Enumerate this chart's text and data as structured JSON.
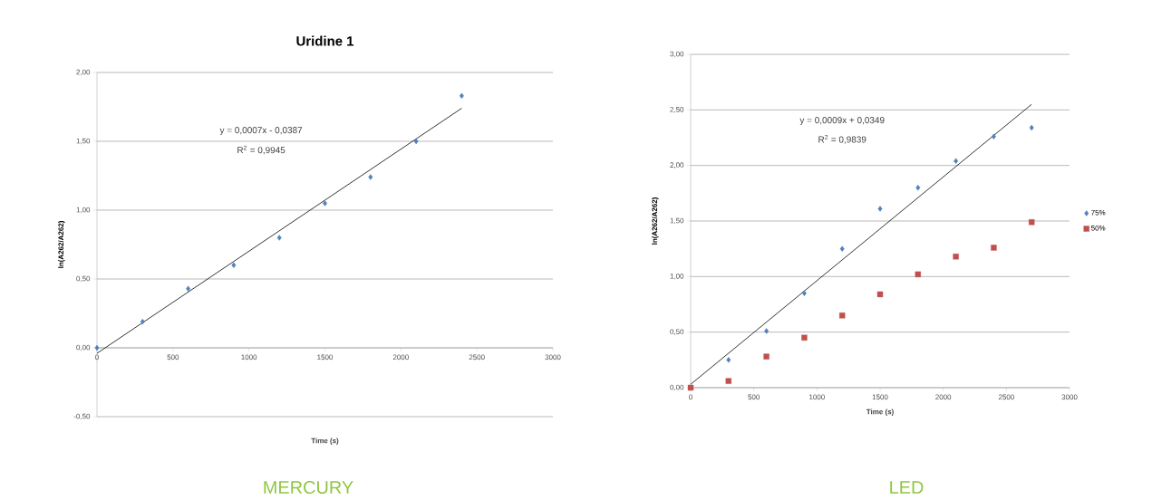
{
  "chart_data": [
    {
      "type": "scatter",
      "title": "Uridine 1",
      "subtitle": "MERCURY",
      "xlabel": "Time (s)",
      "ylabel": "ln(A262/A262)",
      "xlim": [
        0,
        3000
      ],
      "xticks": [
        0,
        500,
        1000,
        1500,
        2000,
        2500,
        3000
      ],
      "ylim": [
        -0.5,
        2.0
      ],
      "yticks": [
        {
          "value": -0.5,
          "label": "-0,50"
        },
        {
          "value": 0,
          "label": "0,00"
        },
        {
          "value": 0.5,
          "label": "0,50"
        },
        {
          "value": 1.0,
          "label": "1,00"
        },
        {
          "value": 1.5,
          "label": "1,50"
        },
        {
          "value": 2.0,
          "label": "2,00"
        }
      ],
      "grid": "y",
      "legend": false,
      "series": [
        {
          "marker": "diamond",
          "color": "#4f81bd",
          "x": [
            0,
            300,
            600,
            900,
            1200,
            1500,
            1800,
            2100,
            2400
          ],
          "values": [
            0.0,
            0.19,
            0.43,
            0.6,
            0.8,
            1.05,
            1.24,
            1.5,
            1.83
          ]
        },
        {
          "type": "line",
          "line_style": "solid",
          "color": "#000000",
          "x": [
            0,
            2400
          ],
          "values": [
            -0.04,
            1.74
          ]
        }
      ],
      "annotations": [
        "y = 0,0007x - 0,0387",
        "R$^{2}$ = 0,9945"
      ]
    },
    {
      "type": "scatter",
      "subtitle": "LED",
      "xlabel": "Time (s)",
      "ylabel": "ln(A262/A262)",
      "xlim": [
        0,
        3000
      ],
      "xticks": [
        0,
        500,
        1000,
        1500,
        2000,
        2500,
        3000
      ],
      "ylim": [
        0,
        3.0
      ],
      "yticks": [
        {
          "value": 0,
          "label": "0,00"
        },
        {
          "value": 0.5,
          "label": "0,50"
        },
        {
          "value": 1.0,
          "label": "1,00"
        },
        {
          "value": 1.5,
          "label": "1,50"
        },
        {
          "value": 2.0,
          "label": "2,00"
        },
        {
          "value": 2.5,
          "label": "2,50"
        },
        {
          "value": 3.0,
          "label": "3,00"
        }
      ],
      "grid": "y",
      "legend": "right",
      "series": [
        {
          "name": "75%",
          "marker": "diamond",
          "color": "#4f81bd",
          "x": [
            300,
            600,
            900,
            1200,
            1500,
            1800,
            2100,
            2400,
            2700
          ],
          "values": [
            0.25,
            0.51,
            0.85,
            1.25,
            1.61,
            1.8,
            2.04,
            2.26,
            2.34
          ]
        },
        {
          "name": "50%",
          "marker": "square",
          "color": "#c0504d",
          "x": [
            0,
            300,
            600,
            900,
            1200,
            1500,
            1800,
            2100,
            2400,
            2700
          ],
          "values": [
            0.0,
            0.06,
            0.28,
            0.45,
            0.65,
            0.84,
            1.02,
            1.18,
            1.26,
            1.49
          ]
        },
        {
          "type": "line",
          "line_style": "solid",
          "color": "#000000",
          "x": [
            0,
            2700
          ],
          "values": [
            0.03,
            2.55
          ]
        }
      ],
      "annotations": [
        "y = 0,0009x + 0,0349",
        "R$^{2}$ = 0,9839"
      ]
    }
  ]
}
